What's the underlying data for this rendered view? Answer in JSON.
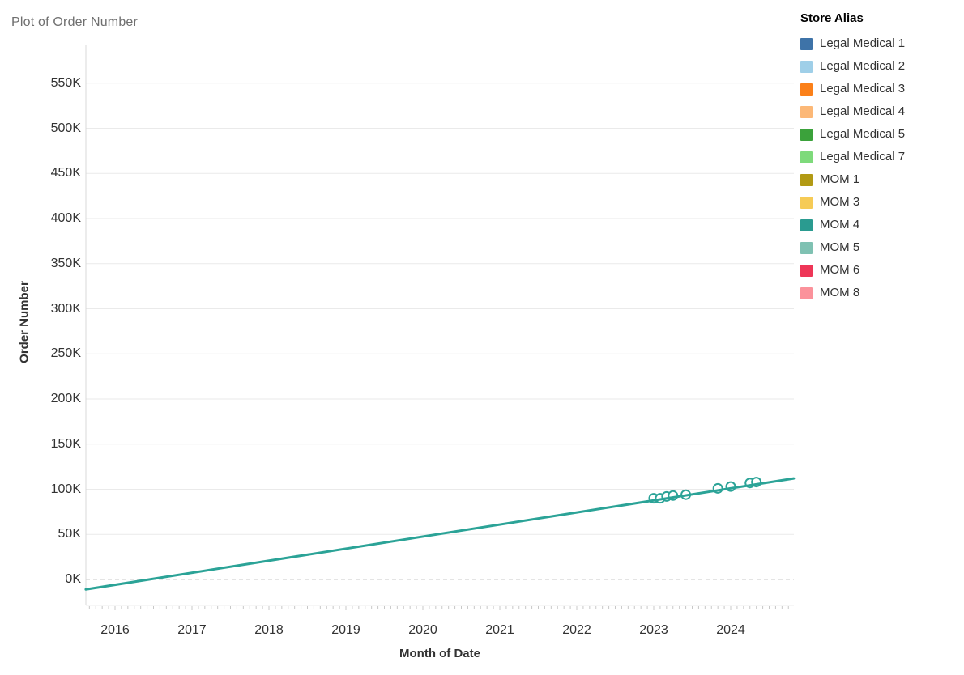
{
  "page": {
    "background": "#ffffff"
  },
  "chart_data": {
    "type": "scatter",
    "title": "Plot of Order Number",
    "xlabel": "Month of Date",
    "ylabel": "Order Number",
    "x_tick_labels": [
      "2016",
      "2017",
      "2018",
      "2019",
      "2020",
      "2021",
      "2022",
      "2023",
      "2024"
    ],
    "y_tick_labels": [
      "0K",
      "50K",
      "100K",
      "150K",
      "200K",
      "250K",
      "300K",
      "350K",
      "400K",
      "450K",
      "500K",
      "550K"
    ],
    "x_range_years": [
      2015.62,
      2024.82
    ],
    "y_range": [
      -29000,
      593000
    ],
    "grid": "horizontal-only",
    "zero_line_style": "dashed",
    "legend_position": "top-right",
    "marks_color": "#2BA397",
    "series": [
      {
        "name": "MOM 4",
        "color": "#2BA397",
        "points": [
          {
            "date": "2023-01",
            "value": 90000
          },
          {
            "date": "2023-02",
            "value": 90000
          },
          {
            "date": "2023-03",
            "value": 92000
          },
          {
            "date": "2023-04",
            "value": 93000
          },
          {
            "date": "2023-06",
            "value": 94000
          },
          {
            "date": "2023-11",
            "value": 101000
          },
          {
            "date": "2024-01",
            "value": 103000
          },
          {
            "date": "2024-04",
            "value": 107000
          },
          {
            "date": "2024-05",
            "value": 108000
          }
        ]
      }
    ],
    "trend_line": {
      "color": "#2BA397",
      "x1_year": 2015.62,
      "value1": -11000,
      "x2_year": 2024.82,
      "value2": 112000
    },
    "legend": {
      "title": "Store Alias",
      "entries": [
        {
          "label": "Legal Medical 1",
          "color": "#3E73A8"
        },
        {
          "label": "Legal Medical 2",
          "color": "#9FCFE8"
        },
        {
          "label": "Legal Medical 3",
          "color": "#FB8019"
        },
        {
          "label": "Legal Medical 4",
          "color": "#FCB877"
        },
        {
          "label": "Legal Medical 5",
          "color": "#3BA23B"
        },
        {
          "label": "Legal Medical 7",
          "color": "#7EDA7B"
        },
        {
          "label": "MOM 1",
          "color": "#B29A14"
        },
        {
          "label": "MOM 3",
          "color": "#F6CB56"
        },
        {
          "label": "MOM 4",
          "color": "#2A9B90"
        },
        {
          "label": "MOM 5",
          "color": "#7FC1B2"
        },
        {
          "label": "MOM 6",
          "color": "#EE3657"
        },
        {
          "label": "MOM 8",
          "color": "#FB929B"
        }
      ]
    }
  }
}
